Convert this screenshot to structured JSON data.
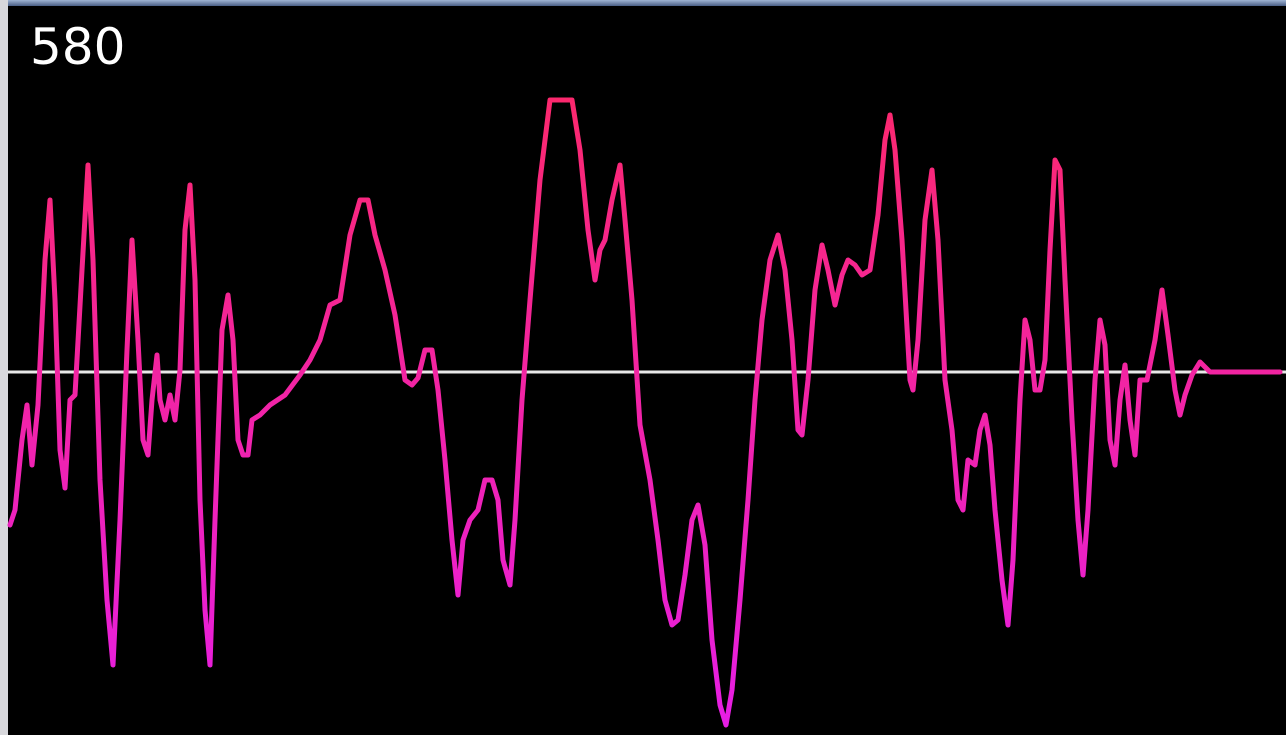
{
  "chart_data": {
    "type": "line",
    "title": "580",
    "x": [
      10,
      15,
      22,
      27,
      32,
      38,
      45,
      50,
      55,
      60,
      65,
      70,
      75,
      82,
      88,
      93,
      100,
      107,
      113,
      120,
      127,
      132,
      138,
      143,
      148,
      152,
      157,
      160,
      165,
      170,
      175,
      180,
      185,
      190,
      195,
      200,
      205,
      210,
      215,
      222,
      228,
      233,
      238,
      243,
      248,
      252,
      260,
      270,
      285,
      300,
      310,
      320,
      330,
      340,
      350,
      360,
      368,
      375,
      385,
      395,
      405,
      412,
      418,
      425,
      432,
      438,
      445,
      452,
      458,
      463,
      470,
      478,
      485,
      492,
      498,
      503,
      510,
      515,
      522,
      530,
      540,
      550,
      572,
      580,
      588,
      595,
      600,
      605,
      612,
      620,
      625,
      632,
      640,
      650,
      658,
      665,
      672,
      678,
      685,
      692,
      698,
      705,
      712,
      720,
      726,
      732,
      740,
      748,
      755,
      762,
      770,
      778,
      785,
      792,
      798,
      802,
      808,
      815,
      822,
      828,
      835,
      842,
      848,
      855,
      862,
      870,
      878,
      885,
      890,
      895,
      902,
      910,
      913,
      918,
      925,
      932,
      938,
      945,
      952,
      958,
      963,
      968,
      975,
      980,
      985,
      990,
      995,
      1002,
      1008,
      1013,
      1020,
      1025,
      1030,
      1035,
      1040,
      1045,
      1050,
      1055,
      1060,
      1065,
      1072,
      1078,
      1083,
      1088,
      1095,
      1100,
      1105,
      1110,
      1115,
      1120,
      1125,
      1130,
      1135,
      1140,
      1147,
      1155,
      1162,
      1168,
      1175,
      1180,
      1185,
      1192,
      1200,
      1210,
      1280
    ],
    "values": [
      -153,
      -138,
      -68,
      -33,
      -93,
      -33,
      112,
      172,
      72,
      -78,
      -116,
      -28,
      -23,
      102,
      207,
      112,
      -108,
      -228,
      -293,
      -148,
      22,
      132,
      32,
      -68,
      -83,
      -28,
      17,
      -28,
      -48,
      -23,
      -48,
      2,
      142,
      187,
      92,
      -128,
      -238,
      -293,
      -148,
      42,
      77,
      32,
      -68,
      -83,
      -83,
      -48,
      -43,
      -33,
      -23,
      -3,
      12,
      32,
      67,
      72,
      137,
      172,
      172,
      137,
      102,
      57,
      -8,
      -13,
      -6,
      22,
      22,
      -18,
      -88,
      -168,
      -223,
      -168,
      -148,
      -138,
      -108,
      -108,
      -128,
      -188,
      -213,
      -148,
      -28,
      72,
      192,
      272,
      272,
      222,
      142,
      92,
      122,
      132,
      172,
      207,
      152,
      72,
      -53,
      -108,
      -168,
      -228,
      -253,
      -248,
      -203,
      -148,
      -133,
      -173,
      -268,
      -333,
      -353,
      -318,
      -228,
      -128,
      -28,
      52,
      112,
      137,
      102,
      32,
      -58,
      -63,
      -8,
      82,
      127,
      102,
      67,
      97,
      112,
      107,
      97,
      102,
      157,
      232,
      257,
      222,
      132,
      -8,
      -18,
      32,
      152,
      202,
      132,
      -8,
      -58,
      -128,
      -138,
      -88,
      -93,
      -58,
      -43,
      -73,
      -138,
      -208,
      -253,
      -188,
      -28,
      52,
      32,
      -18,
      -18,
      12,
      122,
      212,
      202,
      92,
      -48,
      -148,
      -203,
      -138,
      -8,
      52,
      27,
      -68,
      -93,
      -28,
      7,
      -48,
      -83,
      -8,
      -8,
      32,
      82,
      37,
      -18,
      -43,
      -23,
      -3,
      10,
      0,
      0
    ],
    "xlim": [
      0,
      1286
    ],
    "ylim": [
      -367,
      367
    ],
    "color_top": "#ff2a5c",
    "color_bottom": "#e61ee6"
  }
}
